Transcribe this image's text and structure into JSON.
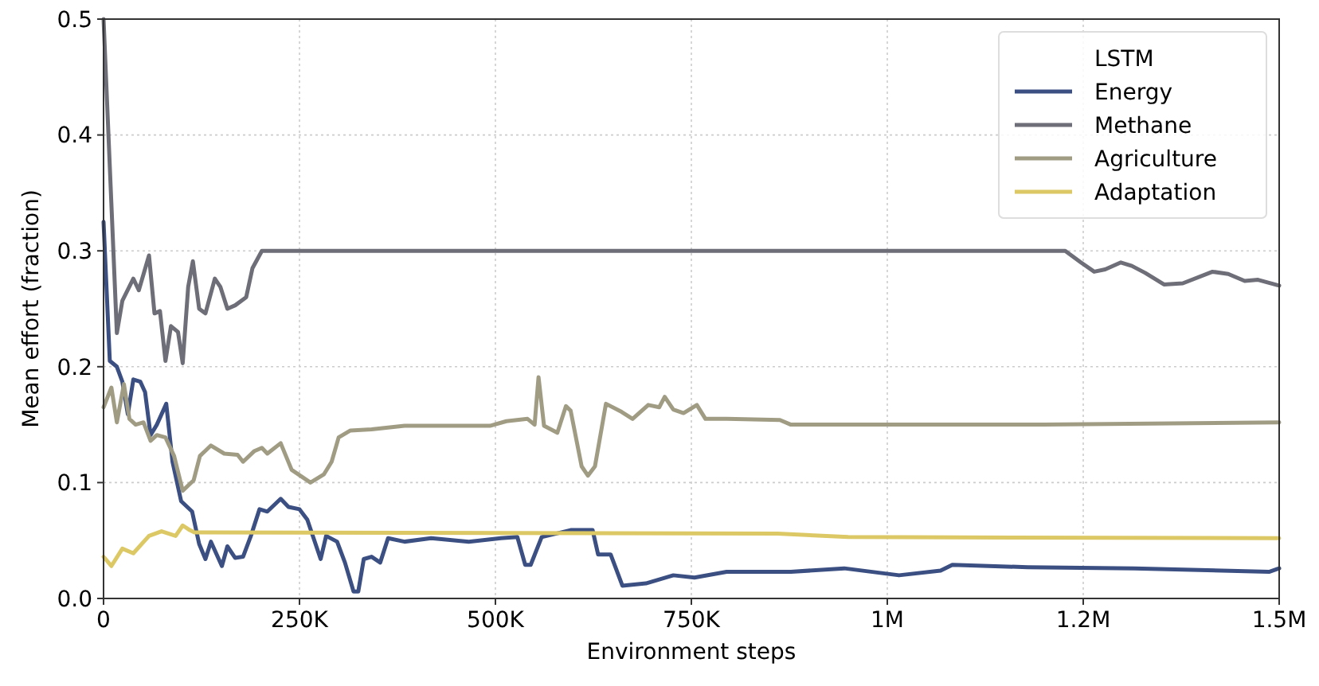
{
  "chart_data": {
    "type": "line",
    "xlabel": "Environment steps",
    "ylabel": "Mean effort (fraction)",
    "legend_title": "LSTM",
    "legend": "top right",
    "grid": true,
    "xlim": [
      0,
      1500000
    ],
    "ylim": [
      0,
      0.5
    ],
    "xticks": [
      0,
      {
        "value": 250000,
        "label": "250K"
      },
      {
        "value": 500000,
        "label": "500K"
      },
      {
        "value": 750000,
        "label": "750K"
      },
      {
        "value": 1000000,
        "label": "1M"
      },
      {
        "value": 1250000,
        "label": "1.2M"
      },
      {
        "value": 1500000,
        "label": "1.5M"
      }
    ],
    "yticks": [
      {
        "value": 0,
        "label": "0.0"
      },
      0.1,
      0.2,
      0.3,
      0.4,
      0.5
    ],
    "series": [
      {
        "name": "Energy",
        "color": "#3b4f82",
        "x": [
          0,
          8000,
          17000,
          24000,
          31000,
          38000,
          47000,
          53000,
          60000,
          68000,
          80000,
          88000,
          99000,
          113000,
          122000,
          130000,
          137000,
          151000,
          158000,
          168000,
          178000,
          188000,
          199000,
          209000,
          226000,
          236000,
          250000,
          260000,
          277000,
          284000,
          298000,
          308000,
          319000,
          325000,
          332000,
          342000,
          353000,
          363000,
          384000,
          418000,
          466000,
          507000,
          528000,
          538000,
          545000,
          559000,
          596000,
          624000,
          631000,
          647000,
          662000,
          692000,
          727000,
          754000,
          795000,
          877000,
          945000,
          1015000,
          1068000,
          1083000,
          1179000,
          1315000,
          1487000,
          1500000
        ],
        "values": [
          0.325,
          0.205,
          0.2,
          0.187,
          0.159,
          0.189,
          0.187,
          0.178,
          0.141,
          0.15,
          0.168,
          0.118,
          0.084,
          0.075,
          0.047,
          0.034,
          0.049,
          0.028,
          0.045,
          0.035,
          0.036,
          0.054,
          0.077,
          0.075,
          0.086,
          0.079,
          0.077,
          0.068,
          0.034,
          0.054,
          0.049,
          0.031,
          0.006,
          0.006,
          0.034,
          0.036,
          0.031,
          0.052,
          0.049,
          0.052,
          0.049,
          0.052,
          0.053,
          0.029,
          0.029,
          0.053,
          0.059,
          0.059,
          0.038,
          0.038,
          0.011,
          0.013,
          0.02,
          0.018,
          0.023,
          0.023,
          0.026,
          0.02,
          0.024,
          0.029,
          0.027,
          0.026,
          0.023,
          0.026
        ]
      },
      {
        "name": "Methane",
        "color": "#6e6e78",
        "x": [
          0,
          17000,
          24000,
          38000,
          45000,
          58000,
          65000,
          72000,
          79000,
          86000,
          95000,
          101000,
          108000,
          114000,
          122000,
          130000,
          142000,
          149000,
          158000,
          168000,
          182000,
          190000,
          202000,
          1227000,
          1247000,
          1264000,
          1278000,
          1298000,
          1312000,
          1329000,
          1353000,
          1377000,
          1415000,
          1435000,
          1456000,
          1473000,
          1500000
        ],
        "values": [
          0.5,
          0.229,
          0.257,
          0.276,
          0.266,
          0.296,
          0.246,
          0.248,
          0.205,
          0.235,
          0.23,
          0.203,
          0.269,
          0.291,
          0.25,
          0.246,
          0.276,
          0.269,
          0.25,
          0.253,
          0.26,
          0.285,
          0.3,
          0.3,
          0.29,
          0.282,
          0.284,
          0.29,
          0.287,
          0.281,
          0.271,
          0.272,
          0.282,
          0.28,
          0.274,
          0.275,
          0.27
        ]
      },
      {
        "name": "Agriculture",
        "color": "#a09c84",
        "x": [
          0,
          10000,
          17000,
          26000,
          33000,
          41000,
          51000,
          60000,
          68000,
          79000,
          90000,
          101000,
          115000,
          123000,
          137000,
          154000,
          171000,
          178000,
          192000,
          202000,
          209000,
          226000,
          240000,
          264000,
          281000,
          291000,
          300000,
          315000,
          342000,
          384000,
          493000,
          514000,
          541000,
          550000,
          555000,
          562000,
          579000,
          590000,
          596000,
          610000,
          618000,
          627000,
          641000,
          661000,
          675000,
          695000,
          709000,
          716000,
          727000,
          740000,
          757000,
          768000,
          795000,
          863000,
          877000,
          1200000,
          1500000
        ],
        "values": [
          0.165,
          0.182,
          0.152,
          0.185,
          0.155,
          0.15,
          0.152,
          0.136,
          0.141,
          0.139,
          0.123,
          0.093,
          0.102,
          0.123,
          0.132,
          0.125,
          0.124,
          0.118,
          0.127,
          0.13,
          0.125,
          0.134,
          0.111,
          0.1,
          0.107,
          0.118,
          0.139,
          0.145,
          0.146,
          0.149,
          0.149,
          0.153,
          0.155,
          0.15,
          0.191,
          0.149,
          0.143,
          0.166,
          0.162,
          0.114,
          0.106,
          0.114,
          0.168,
          0.161,
          0.155,
          0.167,
          0.165,
          0.174,
          0.163,
          0.16,
          0.167,
          0.155,
          0.155,
          0.154,
          0.15,
          0.15,
          0.152
        ]
      },
      {
        "name": "Adaptation",
        "color": "#dcc864",
        "x": [
          0,
          10000,
          24000,
          38000,
          58000,
          74000,
          92000,
          101000,
          110000,
          116000,
          860000,
          950000,
          1500000
        ],
        "values": [
          0.036,
          0.028,
          0.043,
          0.039,
          0.054,
          0.058,
          0.054,
          0.063,
          0.059,
          0.057,
          0.056,
          0.053,
          0.052
        ]
      }
    ]
  }
}
